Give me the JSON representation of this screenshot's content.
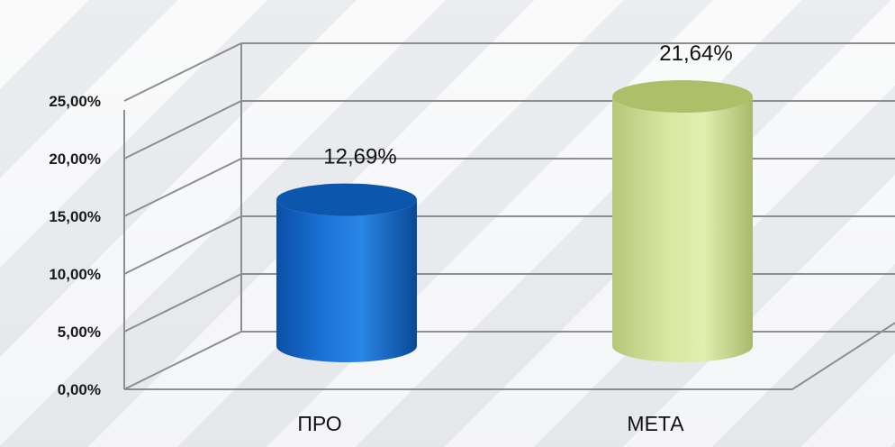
{
  "chart_data": {
    "type": "bar",
    "style": "3d-cylinder",
    "categories": [
      "ПРО",
      "МЕТА"
    ],
    "values": [
      12.69,
      21.64
    ],
    "data_labels": [
      "12,69%",
      "21,64%"
    ],
    "ylim": [
      0,
      25
    ],
    "y_ticks": [
      "0,00%",
      "5,00%",
      "10,00%",
      "15,00%",
      "20,00%",
      "25,00%"
    ],
    "grid": true,
    "colors": {
      "bars": [
        "#1467c8",
        "#c9d98a"
      ],
      "bar_tops": [
        "#0d56ad",
        "#aebf6a"
      ],
      "grid": "#8e8e8e"
    }
  }
}
